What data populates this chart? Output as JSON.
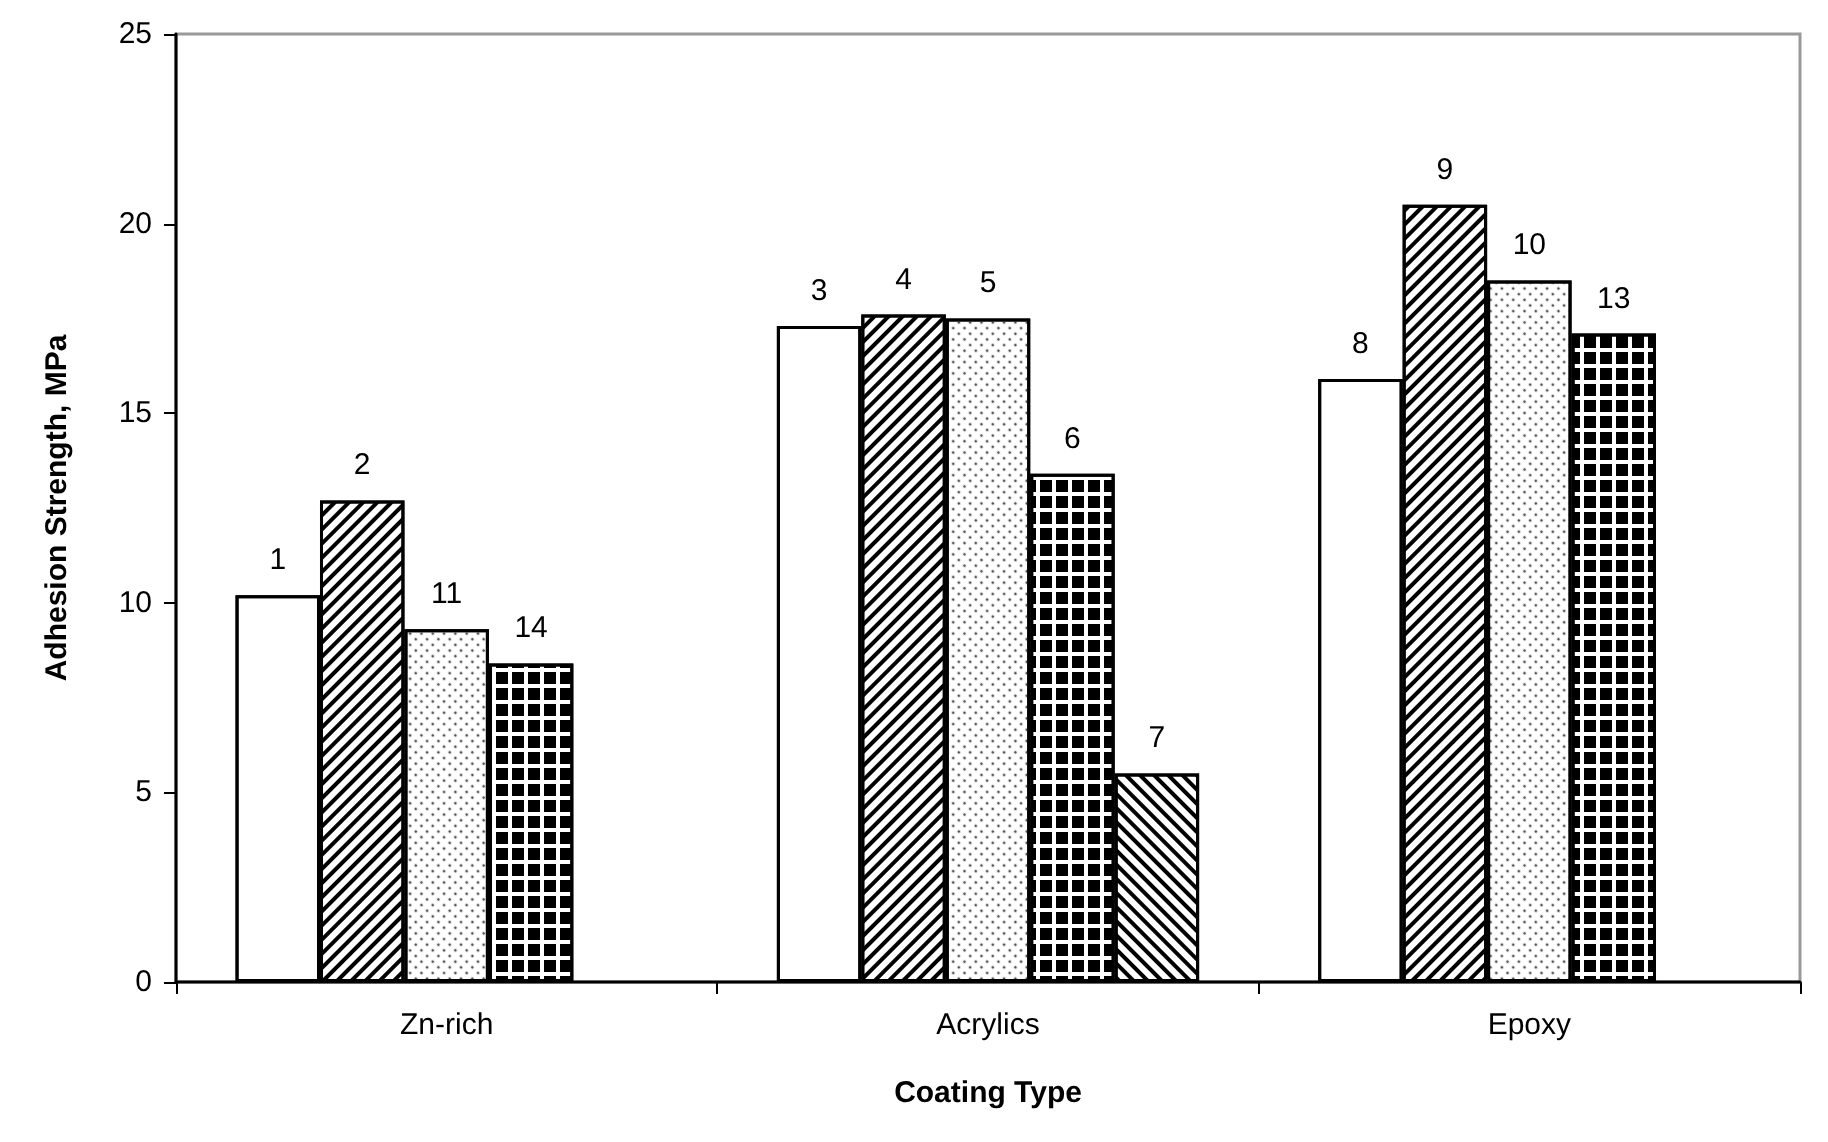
{
  "chart_data": {
    "type": "bar",
    "xlabel": "Coating Type",
    "ylabel": "Adhesion Strength, MPa",
    "categories": [
      "Zn-rich",
      "Acrylics",
      "Epoxy"
    ],
    "series": [
      {
        "color": "#ffffff",
        "values": [
          10.2,
          17.3,
          15.9
        ]
      },
      {
        "color": "#ffffff",
        "values": [
          12.7,
          17.6,
          20.5
        ]
      },
      {
        "color": "#ffffff",
        "values": [
          9.3,
          17.5,
          18.5
        ]
      },
      {
        "color": "#ffffff",
        "values": [
          8.4,
          13.4,
          17.1
        ]
      },
      {
        "color": "#ffffff",
        "values": [
          null,
          5.5,
          null
        ]
      }
    ],
    "annotations": [
      "1",
      "2",
      "11",
      "14",
      "3",
      "4",
      "5",
      "6",
      "7",
      "8",
      "9",
      "10",
      "13"
    ],
    "ylim": [
      0,
      25
    ],
    "yticks": [
      0,
      5,
      10,
      15,
      20,
      25
    ],
    "grid": false
  }
}
